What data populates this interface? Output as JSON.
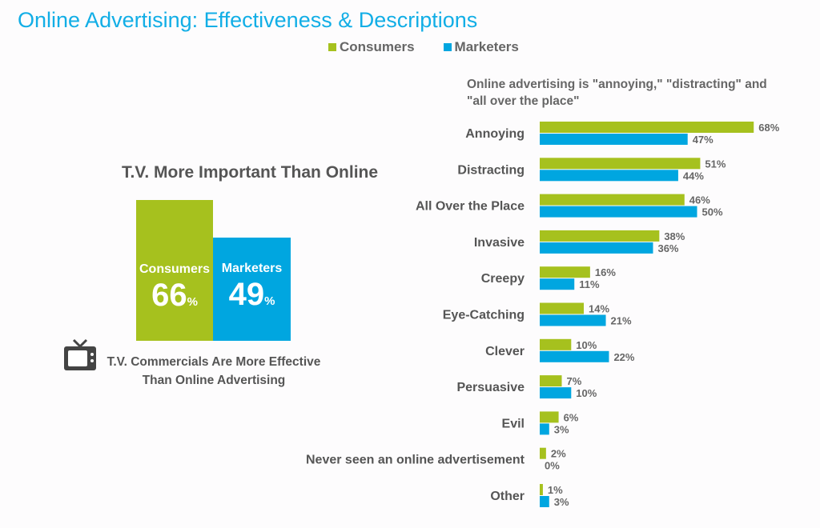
{
  "title": "Online Advertising: Effectiveness & Descriptions",
  "legend": [
    {
      "label": "Consumers",
      "color": "#a6c11e"
    },
    {
      "label": "Marketers",
      "color": "#00a6e0"
    }
  ],
  "tv_panel": {
    "title": "T.V. More Important Than Online",
    "consumers": {
      "label": "Consumers",
      "value": "66",
      "unit": "%"
    },
    "marketers": {
      "label": "Marketers",
      "value": "49",
      "unit": "%"
    },
    "caption_line1": "T.V. Commercials Are More Effective",
    "caption_line2": "Than Online Advertising",
    "icon": "tv-icon"
  },
  "chart_data": {
    "type": "bar",
    "orientation": "horizontal",
    "title": "Online advertising is \"annoying,\" \"distracting\" and \"all over the place\"",
    "title_line1": "Online advertising is \"annoying,\" \"distracting\" and",
    "title_line2": "\"all over the place\"",
    "categories": [
      "Annoying",
      "Distracting",
      "All Over the Place",
      "Invasive",
      "Creepy",
      "Eye-Catching",
      "Clever",
      "Persuasive",
      "Evil",
      "Never seen an online advertisement",
      "Other"
    ],
    "series": [
      {
        "name": "Consumers",
        "color": "#a6c11e",
        "values": [
          68,
          51,
          46,
          38,
          16,
          14,
          10,
          7,
          6,
          2,
          1
        ]
      },
      {
        "name": "Marketers",
        "color": "#00a6e0",
        "values": [
          47,
          44,
          50,
          36,
          11,
          21,
          22,
          10,
          3,
          0,
          3
        ]
      }
    ],
    "value_suffix": "%",
    "xlim": [
      0,
      100
    ]
  }
}
